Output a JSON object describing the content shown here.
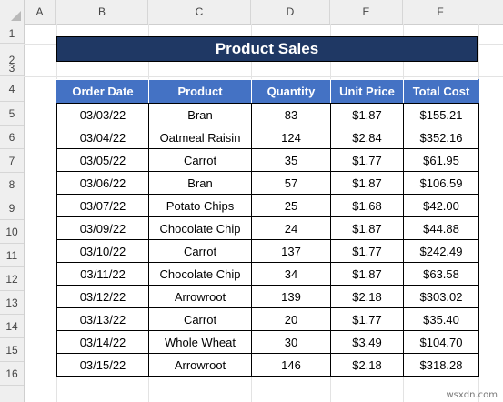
{
  "columns": [
    "A",
    "B",
    "C",
    "D",
    "E",
    "F"
  ],
  "rows": [
    "1",
    "2",
    "3",
    "4",
    "5",
    "6",
    "7",
    "8",
    "9",
    "10",
    "11",
    "12",
    "13",
    "14",
    "15",
    "16"
  ],
  "title": "Product Sales",
  "table": {
    "headers": [
      "Order Date",
      "Product",
      "Quantity",
      "Unit Price",
      "Total Cost"
    ],
    "rows": [
      [
        "03/03/22",
        "Bran",
        "83",
        "$1.87",
        "$155.21"
      ],
      [
        "03/04/22",
        "Oatmeal Raisin",
        "124",
        "$2.84",
        "$352.16"
      ],
      [
        "03/05/22",
        "Carrot",
        "35",
        "$1.77",
        "$61.95"
      ],
      [
        "03/06/22",
        "Bran",
        "57",
        "$1.87",
        "$106.59"
      ],
      [
        "03/07/22",
        "Potato Chips",
        "25",
        "$1.68",
        "$42.00"
      ],
      [
        "03/09/22",
        "Chocolate Chip",
        "24",
        "$1.87",
        "$44.88"
      ],
      [
        "03/10/22",
        "Carrot",
        "137",
        "$1.77",
        "$242.49"
      ],
      [
        "03/11/22",
        "Chocolate Chip",
        "34",
        "$1.87",
        "$63.58"
      ],
      [
        "03/12/22",
        "Arrowroot",
        "139",
        "$2.18",
        "$303.02"
      ],
      [
        "03/13/22",
        "Carrot",
        "20",
        "$1.77",
        "$35.40"
      ],
      [
        "03/14/22",
        "Whole Wheat",
        "30",
        "$3.49",
        "$104.70"
      ],
      [
        "03/15/22",
        "Arrowroot",
        "146",
        "$2.18",
        "$318.28"
      ]
    ]
  },
  "watermark": "wsxdn.com",
  "colors": {
    "title_bg": "#1f3864",
    "header_bg": "#4472c4"
  }
}
